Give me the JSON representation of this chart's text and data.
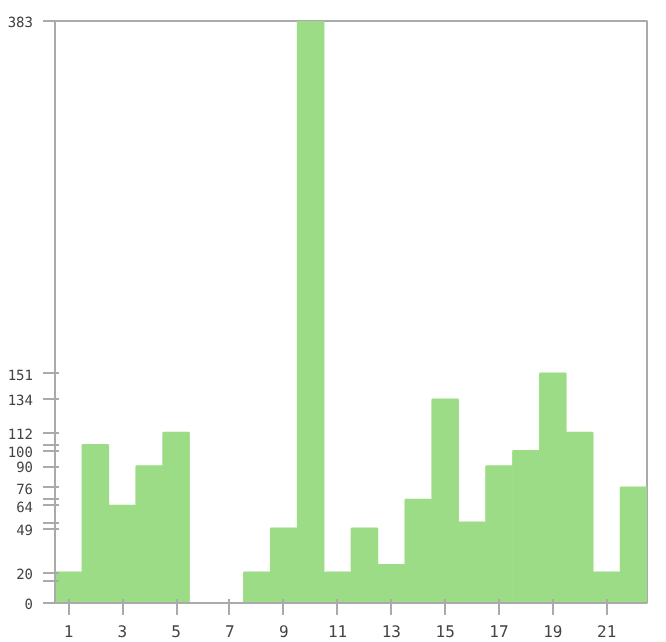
{
  "chart_data": {
    "type": "bar",
    "x": [
      1,
      2,
      3,
      4,
      5,
      6,
      7,
      8,
      9,
      10,
      11,
      12,
      13,
      14,
      15,
      16,
      17,
      18,
      19,
      20,
      21,
      22
    ],
    "values": [
      20,
      104,
      64,
      90,
      112,
      0,
      0,
      20,
      49,
      383,
      20,
      49,
      25,
      68,
      134,
      53,
      90,
      100,
      151,
      112,
      20,
      76
    ],
    "color": "#9ddc86",
    "xlim": [
      0.5,
      22.5
    ],
    "xticks": [
      1,
      3,
      5,
      7,
      9,
      11,
      13,
      15,
      17,
      19,
      21
    ],
    "ylim": [
      0,
      383
    ],
    "yticks": [
      0,
      {
        "value": 15,
        "label": null
      },
      20,
      49,
      {
        "value": 53,
        "label": null
      },
      64,
      {
        "value": 68,
        "label": null
      },
      76,
      90,
      100,
      {
        "value": 104,
        "label": null
      },
      112,
      134,
      151,
      383
    ],
    "grid": false
  }
}
